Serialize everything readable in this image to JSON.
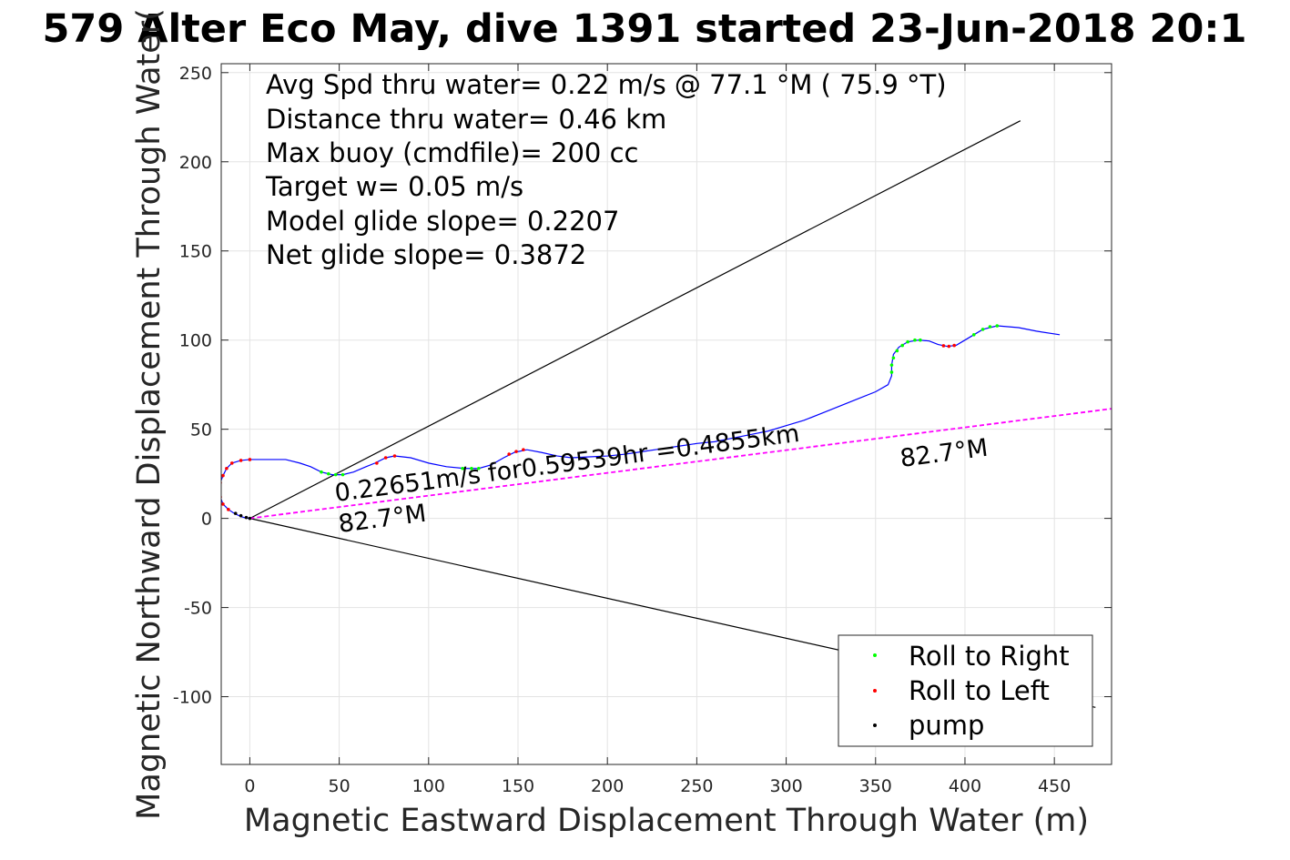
{
  "chart_data": {
    "type": "scatter",
    "title": "579 Alter Eco May, dive 1391 started 23-Jun-2018 20:1",
    "xlabel": "Magnetic Eastward Displacement Through Water (m)",
    "ylabel": "Magnetic Northward Displacement Through Water(",
    "xlim": [
      -16,
      482
    ],
    "ylim": [
      -138,
      255
    ],
    "x_ticks": [
      0,
      50,
      100,
      150,
      200,
      250,
      300,
      350,
      400,
      450
    ],
    "y_ticks": [
      -100,
      -50,
      0,
      50,
      100,
      150,
      200,
      250
    ],
    "x_tick_labels": [
      "0",
      "50",
      "100",
      "150",
      "200",
      "250",
      "300",
      "350",
      "400",
      "450"
    ],
    "y_tick_labels": [
      "-100",
      "-50",
      "0",
      "50",
      "100",
      "150",
      "200",
      "250"
    ],
    "grid": true,
    "info_lines": [
      "Avg Spd thru water=  0.22 m/s @  77.1 °M ( 75.9 °T)",
      "Distance thru water=  0.46 km",
      "Max buoy (cmdfile)= 200 cc",
      "Target w= 0.05 m/s",
      "Model glide slope= 0.2207",
      "Net glide slope= 0.3872"
    ],
    "annotations": {
      "speed_text": "0.22651m/s for0.59539hr =0.4855km",
      "heading_near": "82.7°M",
      "heading_far": "82.7°M"
    },
    "legend": {
      "position": "bottom-right",
      "entries": [
        {
          "label": "Roll to Right",
          "color": "#00ff00"
        },
        {
          "label": "Roll to Left",
          "color": "#ff0000"
        },
        {
          "label": "pump",
          "color": "#000000"
        }
      ]
    },
    "colors": {
      "track": "#0000ff",
      "heading_line": "#ff00ff",
      "cone": "#000000",
      "roll_right": "#00ff00",
      "roll_left": "#ff0000",
      "pump": "#000000",
      "grid": "#e3e3e3"
    },
    "reference_lines": {
      "cone_upper": [
        [
          0,
          0
        ],
        [
          431,
          223
        ]
      ],
      "cone_lower": [
        [
          0,
          0
        ],
        [
          473,
          -106
        ]
      ],
      "heading_line": [
        [
          0,
          0
        ],
        [
          482,
          61.5
        ]
      ]
    },
    "series": [
      {
        "name": "track",
        "style": "line",
        "points": [
          [
            453,
            103
          ],
          [
            440,
            105
          ],
          [
            430,
            107
          ],
          [
            418,
            108
          ],
          [
            410,
            106
          ],
          [
            405,
            103
          ],
          [
            400,
            100
          ],
          [
            395,
            97
          ],
          [
            390,
            96.5
          ],
          [
            385,
            97.5
          ],
          [
            380,
            99.5
          ],
          [
            374,
            100
          ],
          [
            368,
            99
          ],
          [
            363,
            96
          ],
          [
            360,
            92
          ],
          [
            359,
            86
          ],
          [
            359,
            80
          ],
          [
            357,
            75
          ],
          [
            350,
            71
          ],
          [
            340,
            67
          ],
          [
            330,
            63
          ],
          [
            320,
            59
          ],
          [
            310,
            55
          ],
          [
            300,
            52
          ],
          [
            290,
            49
          ],
          [
            280,
            47
          ],
          [
            270,
            45
          ],
          [
            260,
            43
          ],
          [
            250,
            42
          ],
          [
            240,
            40.5
          ],
          [
            230,
            39
          ],
          [
            220,
            37.5
          ],
          [
            210,
            36
          ],
          [
            200,
            35
          ],
          [
            190,
            34.5
          ],
          [
            180,
            34
          ],
          [
            172,
            35
          ],
          [
            163,
            37
          ],
          [
            155,
            38.5
          ],
          [
            148,
            37
          ],
          [
            142,
            34
          ],
          [
            135,
            30
          ],
          [
            128,
            28
          ],
          [
            120,
            28
          ],
          [
            110,
            29
          ],
          [
            100,
            31
          ],
          [
            90,
            34
          ],
          [
            81,
            35
          ],
          [
            76,
            34
          ],
          [
            70,
            31
          ],
          [
            65,
            29
          ],
          [
            58,
            26
          ],
          [
            52,
            24.5
          ],
          [
            46,
            24.5
          ],
          [
            40,
            26
          ],
          [
            34,
            29
          ],
          [
            28,
            31
          ],
          [
            20,
            33
          ],
          [
            10,
            33
          ],
          [
            0,
            33
          ],
          [
            -5,
            32.5
          ],
          [
            -10,
            31
          ],
          [
            -13,
            28
          ],
          [
            -15,
            24
          ],
          [
            -16.5,
            20
          ],
          [
            -17,
            16
          ],
          [
            -16.5,
            12
          ],
          [
            -15,
            8
          ],
          [
            -12,
            5
          ],
          [
            -9,
            3
          ],
          [
            -5,
            1
          ],
          [
            -2,
            0.2
          ],
          [
            0,
            0
          ]
        ]
      },
      {
        "name": "Roll to Right",
        "style": "markers",
        "points": [
          [
            40,
            26
          ],
          [
            44,
            25
          ],
          [
            48,
            24.5
          ],
          [
            52,
            24.5
          ],
          [
            119,
            28
          ],
          [
            124,
            28
          ],
          [
            128,
            28
          ],
          [
            359,
            82
          ],
          [
            359,
            86
          ],
          [
            360,
            90
          ],
          [
            362,
            94
          ],
          [
            365,
            97
          ],
          [
            368,
            99
          ],
          [
            372,
            100
          ],
          [
            375,
            100
          ],
          [
            405,
            103
          ],
          [
            410,
            106
          ],
          [
            414,
            107.5
          ],
          [
            418,
            108
          ]
        ]
      },
      {
        "name": "Roll to Left",
        "style": "markers",
        "points": [
          [
            -16.5,
            20
          ],
          [
            -17,
            16
          ],
          [
            -16.5,
            12
          ],
          [
            -15,
            8
          ],
          [
            -12,
            5
          ],
          [
            0,
            33
          ],
          [
            -5,
            32.5
          ],
          [
            -10,
            31
          ],
          [
            -13,
            28
          ],
          [
            -15,
            24
          ],
          [
            71,
            31
          ],
          [
            76,
            34
          ],
          [
            81,
            35
          ],
          [
            145,
            36
          ],
          [
            149,
            37.5
          ],
          [
            153,
            38.5
          ],
          [
            388,
            96.8
          ],
          [
            391,
            96.5
          ],
          [
            394,
            97
          ]
        ]
      },
      {
        "name": "pump",
        "style": "markers",
        "points": [
          [
            0,
            0
          ],
          [
            -2,
            0.5
          ],
          [
            -5,
            1.5
          ],
          [
            -8,
            2.8
          ]
        ]
      }
    ]
  }
}
